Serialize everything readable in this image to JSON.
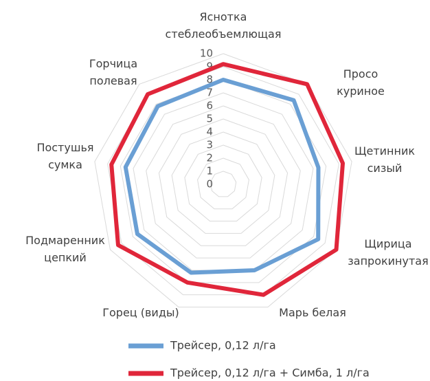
{
  "chart_data": {
    "type": "radar",
    "categories": [
      "Яснотка\nстеблеобъемлющая",
      "Просо\nкуриное",
      "Щетинник\nсизый",
      "Щирица\nзапрокинутая",
      "Марь белая",
      "Горец (виды)",
      "Подмаренник\nцепкий",
      "Постушья\nсумка",
      "Горчица\nполевая"
    ],
    "series": [
      {
        "name": "Трейсер, 0,12 л/га",
        "color": "#6a9fd4",
        "values": [
          8,
          8.4,
          7.4,
          8.4,
          7,
          7.2,
          7.6,
          7.6,
          7.8
        ]
      },
      {
        "name": "Трейсер, 0,12 л/га + Симба, 1 л/га",
        "color": "#e0263a",
        "values": [
          9.2,
          10,
          9.3,
          10,
          9,
          8,
          9.3,
          8.7,
          9
        ]
      }
    ],
    "ylim": [
      0,
      10
    ],
    "yticks": [
      0,
      1,
      2,
      3,
      4,
      5,
      6,
      7,
      8,
      9,
      10
    ],
    "grid": true,
    "legend": "bottom"
  }
}
